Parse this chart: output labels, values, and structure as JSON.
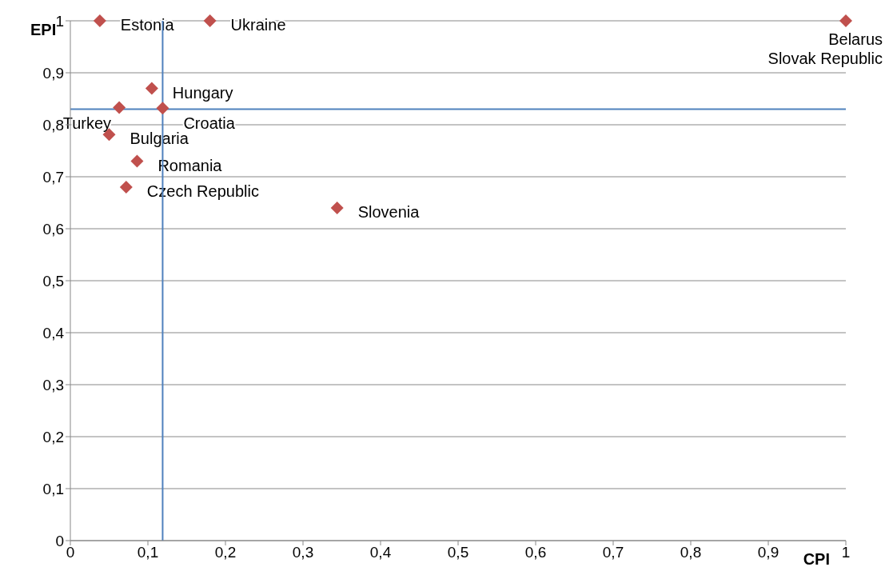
{
  "chart_data": {
    "type": "scatter",
    "xlabel": "CPI",
    "ylabel": "EPI",
    "series": [
      {
        "color": "#c0504d",
        "x": [
          0.038,
          0.18,
          1,
          0.105,
          0.063,
          0.119,
          0.05,
          0.086,
          0.072,
          0.344
        ],
        "values": [
          1,
          1,
          1,
          0.87,
          0.833,
          0.832,
          0.781,
          0.73,
          0.68,
          0.64
        ]
      }
    ],
    "marker": "diamond",
    "grid": "y",
    "legend": false,
    "xlim": [
      0,
      1
    ],
    "xticks": [
      {
        "value": 0,
        "label": "0"
      },
      {
        "value": 0.1,
        "label": "0,1"
      },
      {
        "value": 0.2,
        "label": "0,2"
      },
      {
        "value": 0.3,
        "label": "0,3"
      },
      {
        "value": 0.4,
        "label": "0,4"
      },
      {
        "value": 0.5,
        "label": "0,5"
      },
      {
        "value": 0.6,
        "label": "0,6"
      },
      {
        "value": 0.7,
        "label": "0,7"
      },
      {
        "value": 0.8,
        "label": "0,8"
      },
      {
        "value": 0.9,
        "label": "0,9"
      },
      {
        "value": 1,
        "label": "1"
      }
    ],
    "ylim": [
      0,
      1
    ],
    "yticks": [
      {
        "value": 0,
        "label": "0"
      },
      {
        "value": 0.1,
        "label": "0,1"
      },
      {
        "value": 0.2,
        "label": "0,2"
      },
      {
        "value": 0.3,
        "label": "0,3"
      },
      {
        "value": 0.4,
        "label": "0,4"
      },
      {
        "value": 0.5,
        "label": "0,5"
      },
      {
        "value": 0.6,
        "label": "0,6"
      },
      {
        "value": 0.7,
        "label": "0,7"
      },
      {
        "value": 0.8,
        "label": "0,8"
      },
      {
        "value": 0.9,
        "label": "0,9"
      },
      {
        "value": 1,
        "label": "1"
      }
    ],
    "ref_lines": [
      {
        "axis": "x",
        "value": 0.119,
        "color": "#4f81bd"
      },
      {
        "axis": "y",
        "value": 0.83,
        "color": "#4f81bd"
      }
    ],
    "annotations": [
      {
        "text": "Estonia",
        "x": 0.038,
        "y": 1
      },
      {
        "text": "Ukraine",
        "x": 0.18,
        "y": 1
      },
      {
        "text": "Belarus",
        "x": 1,
        "y": 1
      },
      {
        "text": "Slovak Republic",
        "x": 1,
        "y": 1
      },
      {
        "text": "Hungary",
        "x": 0.105,
        "y": 0.87
      },
      {
        "text": "Turkey",
        "x": 0.063,
        "y": 0.833
      },
      {
        "text": "Croatia",
        "x": 0.119,
        "y": 0.832
      },
      {
        "text": "Bulgaria",
        "x": 0.05,
        "y": 0.781
      },
      {
        "text": "Romania",
        "x": 0.086,
        "y": 0.73
      },
      {
        "text": "Czech Republic",
        "x": 0.072,
        "y": 0.68
      },
      {
        "text": "Slovenia",
        "x": 0.344,
        "y": 0.64
      }
    ]
  }
}
